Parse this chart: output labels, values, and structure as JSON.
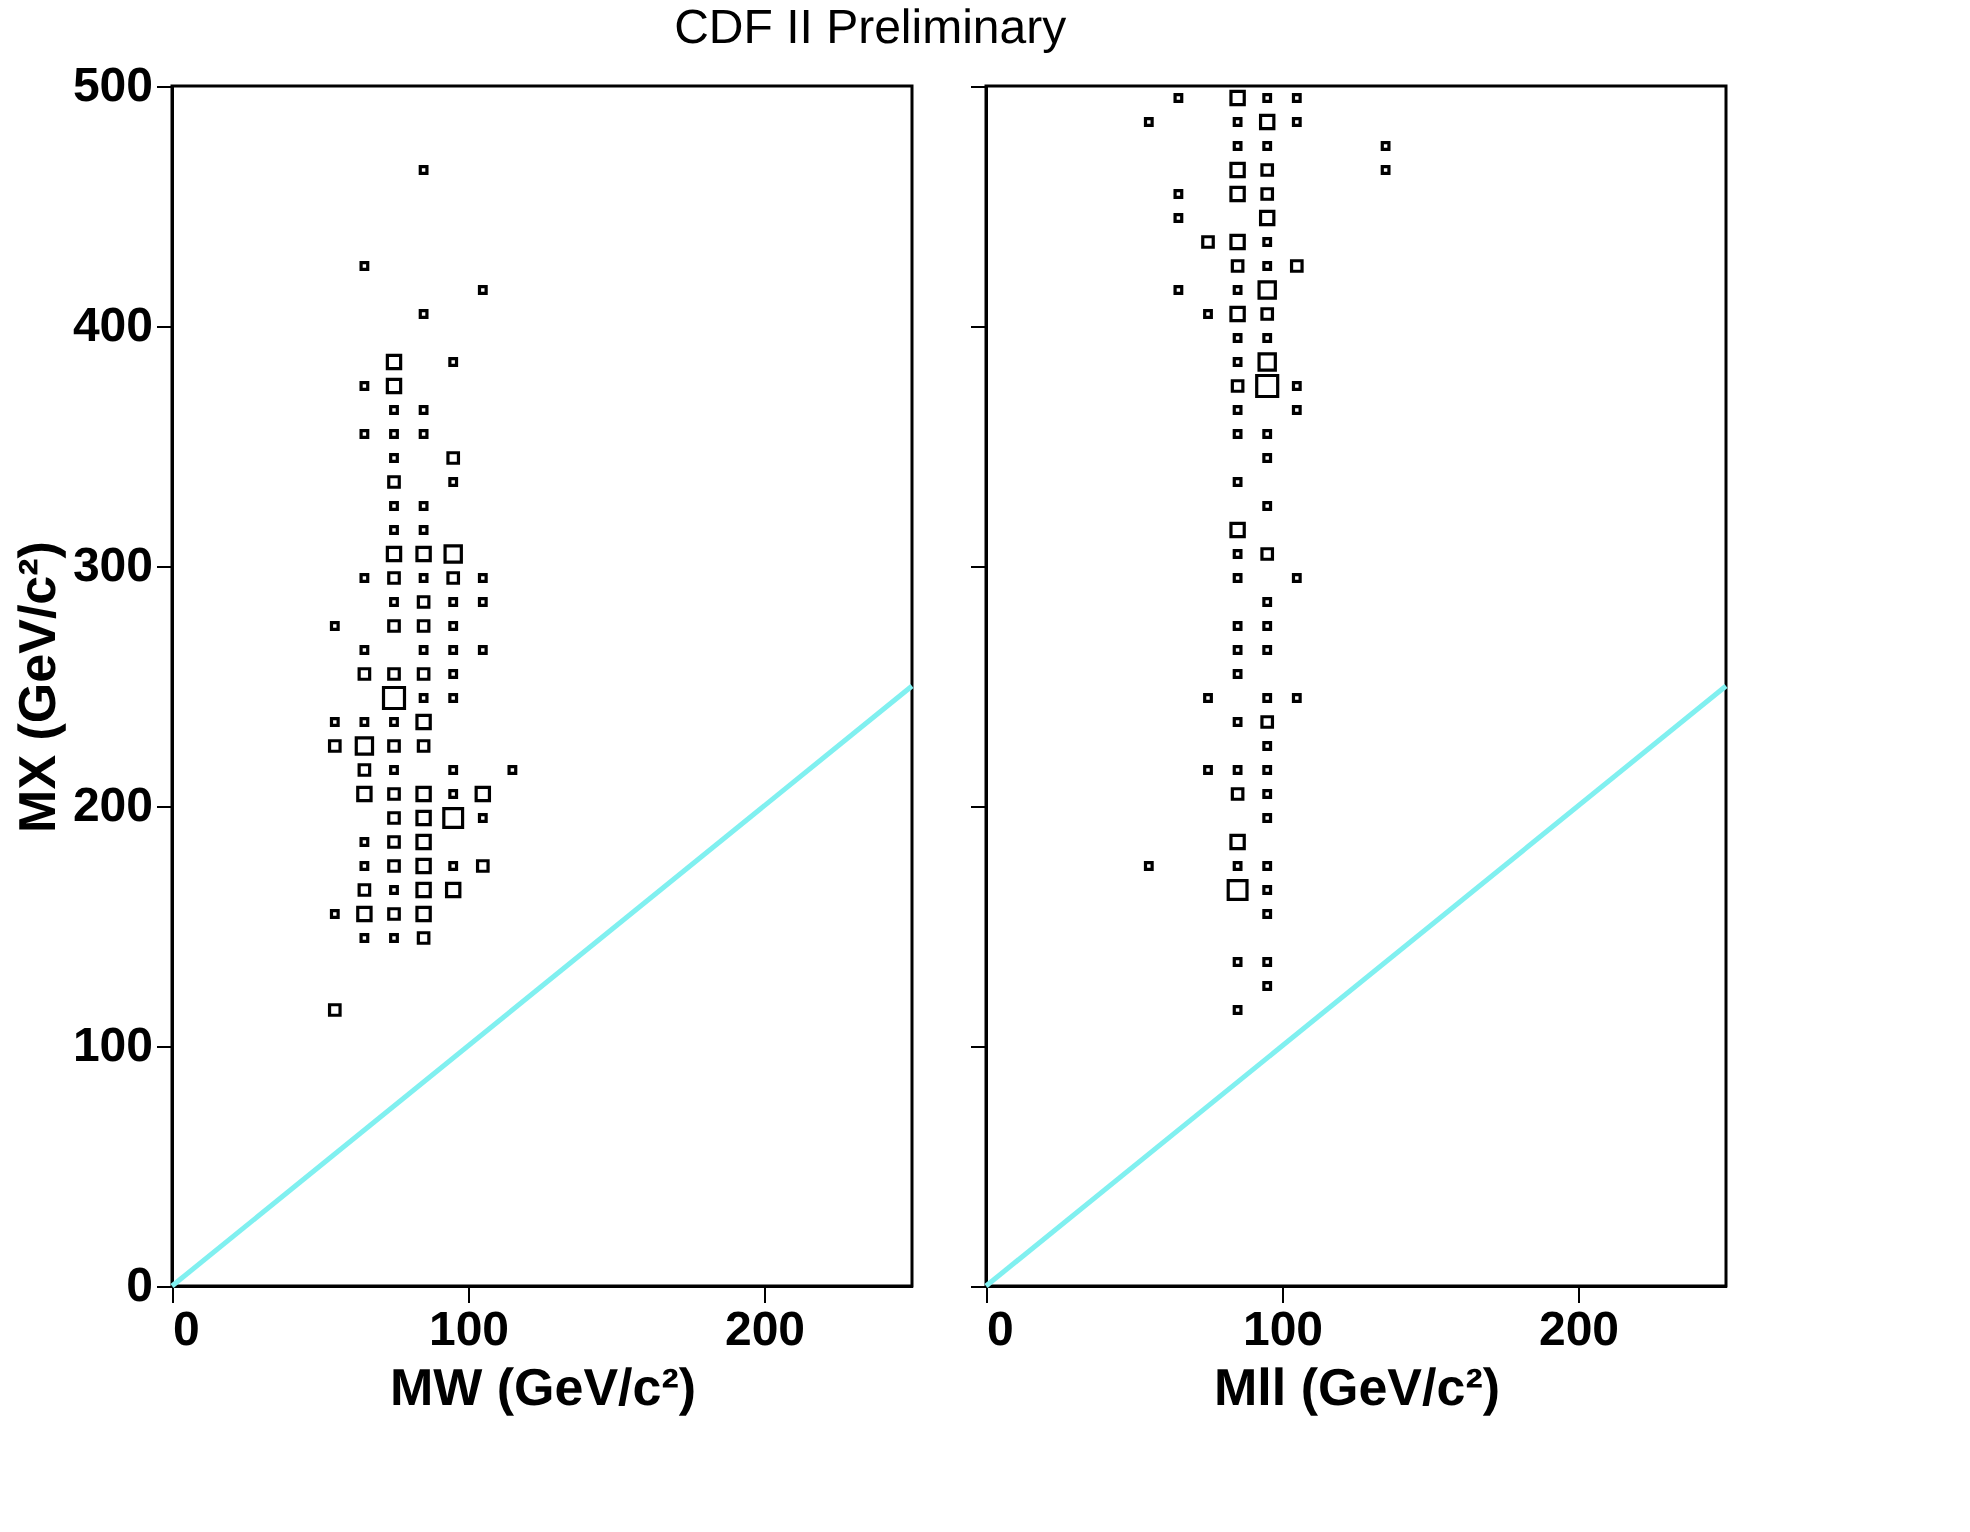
{
  "chart_data": [
    {
      "type": "bubble",
      "title": "CDF II Preliminary",
      "xlabel": "MW (GeV/c²)",
      "ylabel": "MX (GeV/c²)",
      "xlim": [
        0,
        250
      ],
      "ylim": [
        0,
        500
      ],
      "xticks": [
        0,
        100,
        200
      ],
      "yticks": [
        0,
        100,
        200,
        300,
        400,
        500
      ],
      "grid": false,
      "series": [
        {
          "marker": "square",
          "color": "#000000",
          "x": [
            85,
            65,
            105,
            85,
            75,
            95,
            65,
            75,
            75,
            85,
            65,
            75,
            85,
            75,
            95,
            75,
            95,
            75,
            85,
            75,
            85,
            75,
            85,
            95,
            65,
            75,
            85,
            95,
            105,
            75,
            85,
            95,
            105,
            55,
            75,
            85,
            95,
            65,
            85,
            95,
            105,
            65,
            75,
            85,
            95,
            75,
            85,
            95,
            55,
            65,
            75,
            85,
            55,
            65,
            75,
            85,
            65,
            75,
            95,
            115,
            65,
            75,
            85,
            95,
            105,
            75,
            85,
            95,
            105,
            65,
            75,
            85,
            65,
            75,
            85,
            95,
            105,
            65,
            75,
            85,
            95,
            55,
            65,
            75,
            85,
            65,
            75,
            85,
            55
          ],
          "values": [
            465,
            425,
            415,
            405,
            385,
            385,
            375,
            375,
            365,
            365,
            355,
            355,
            355,
            345,
            345,
            335,
            335,
            325,
            325,
            315,
            315,
            305,
            305,
            305,
            295,
            295,
            295,
            295,
            295,
            285,
            285,
            285,
            285,
            275,
            275,
            275,
            275,
            265,
            265,
            265,
            265,
            255,
            255,
            255,
            255,
            245,
            245,
            245,
            235,
            235,
            235,
            235,
            225,
            225,
            225,
            225,
            215,
            215,
            215,
            215,
            205,
            205,
            205,
            205,
            205,
            195,
            195,
            195,
            195,
            185,
            185,
            185,
            175,
            175,
            175,
            175,
            175,
            165,
            165,
            165,
            165,
            155,
            155,
            155,
            155,
            145,
            145,
            145,
            115
          ],
          "sizes": [
            0.1,
            0.1,
            0.1,
            0.1,
            0.4,
            0.1,
            0.1,
            0.4,
            0.1,
            0.1,
            0.1,
            0.1,
            0.1,
            0.1,
            0.25,
            0.25,
            0.1,
            0.1,
            0.1,
            0.1,
            0.1,
            0.4,
            0.4,
            0.6,
            0.1,
            0.25,
            0.1,
            0.25,
            0.1,
            0.1,
            0.25,
            0.1,
            0.1,
            0.1,
            0.25,
            0.25,
            0.1,
            0.1,
            0.1,
            0.1,
            0.1,
            0.25,
            0.25,
            0.25,
            0.1,
            1,
            0.1,
            0.1,
            0.1,
            0.1,
            0.1,
            0.4,
            0.25,
            0.6,
            0.25,
            0.25,
            0.25,
            0.1,
            0.1,
            0.1,
            0.4,
            0.25,
            0.4,
            0.1,
            0.4,
            0.25,
            0.4,
            0.8,
            0.1,
            0.1,
            0.25,
            0.4,
            0.1,
            0.25,
            0.4,
            0.1,
            0.25,
            0.25,
            0.1,
            0.4,
            0.4,
            0.1,
            0.4,
            0.25,
            0.4,
            0.1,
            0.1,
            0.25,
            0.25
          ]
        },
        {
          "type": "line",
          "color": "#80f0f0",
          "x": [
            0,
            250
          ],
          "values": [
            0,
            250
          ]
        }
      ]
    },
    {
      "type": "bubble",
      "xlabel": "Mll (GeV/c²)",
      "xlim": [
        0,
        250
      ],
      "ylim": [
        0,
        500
      ],
      "xticks": [
        0,
        100,
        200
      ],
      "yticks": [
        0,
        100,
        200,
        300,
        400,
        500
      ],
      "tick_labels": "x",
      "grid": false,
      "series": [
        {
          "marker": "square",
          "color": "#000000",
          "x": [
            65,
            85,
            95,
            105,
            55,
            85,
            95,
            105,
            85,
            95,
            135,
            85,
            95,
            135,
            65,
            85,
            95,
            65,
            95,
            75,
            85,
            95,
            85,
            95,
            105,
            65,
            85,
            95,
            75,
            85,
            95,
            85,
            95,
            85,
            95,
            85,
            95,
            105,
            85,
            105,
            85,
            95,
            95,
            85,
            95,
            85,
            85,
            95,
            85,
            105,
            95,
            85,
            95,
            85,
            95,
            85,
            75,
            95,
            105,
            85,
            95,
            95,
            75,
            85,
            95,
            85,
            95,
            95,
            85,
            55,
            85,
            95,
            85,
            95,
            95,
            85,
            95,
            95,
            85
          ],
          "values": [
            495,
            495,
            495,
            495,
            485,
            485,
            485,
            485,
            475,
            475,
            475,
            465,
            465,
            465,
            455,
            455,
            455,
            445,
            445,
            435,
            435,
            435,
            425,
            425,
            425,
            415,
            415,
            415,
            405,
            405,
            405,
            395,
            395,
            385,
            385,
            375,
            375,
            375,
            365,
            365,
            355,
            355,
            345,
            335,
            325,
            315,
            305,
            305,
            295,
            295,
            285,
            275,
            275,
            265,
            265,
            255,
            245,
            245,
            245,
            235,
            235,
            225,
            215,
            215,
            215,
            205,
            205,
            195,
            185,
            175,
            175,
            175,
            165,
            165,
            155,
            135,
            135,
            125,
            115
          ],
          "sizes": [
            0.1,
            0.4,
            0.1,
            0.1,
            0.1,
            0.1,
            0.4,
            0.1,
            0.1,
            0.1,
            0.1,
            0.4,
            0.25,
            0.1,
            0.1,
            0.4,
            0.25,
            0.1,
            0.4,
            0.25,
            0.4,
            0.1,
            0.25,
            0.1,
            0.25,
            0.1,
            0.1,
            0.6,
            0.1,
            0.4,
            0.25,
            0.1,
            0.1,
            0.1,
            0.6,
            0.25,
            1,
            0.1,
            0.1,
            0.1,
            0.1,
            0.1,
            0.1,
            0.1,
            0.1,
            0.4,
            0.1,
            0.25,
            0.1,
            0.1,
            0.1,
            0.1,
            0.1,
            0.1,
            0.1,
            0.1,
            0.1,
            0.1,
            0.1,
            0.1,
            0.25,
            0.1,
            0.1,
            0.1,
            0.1,
            0.25,
            0.1,
            0.1,
            0.4,
            0.1,
            0.1,
            0.1,
            0.8,
            0.1,
            0.1,
            0.1,
            0.1,
            0.1,
            0.1
          ]
        },
        {
          "type": "line",
          "color": "#80f0f0",
          "x": [
            0,
            250
          ],
          "values": [
            0,
            250
          ]
        }
      ]
    }
  ]
}
